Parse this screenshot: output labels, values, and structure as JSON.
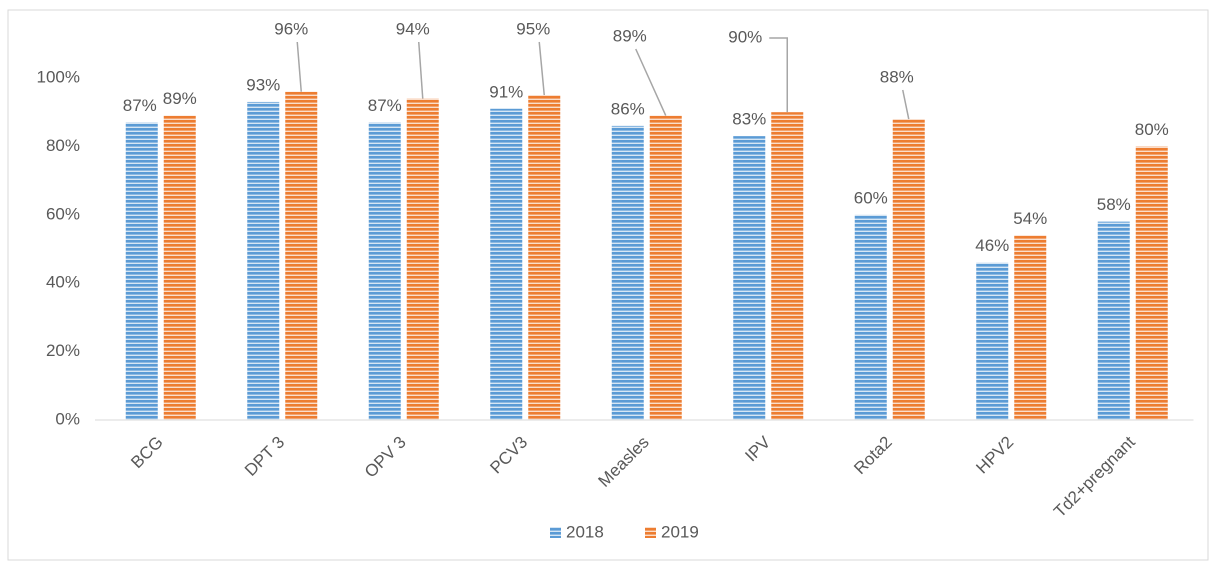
{
  "chart_data": {
    "type": "bar",
    "categories": [
      "BCG",
      "DPT 3",
      "OPV 3",
      "PCV3",
      "Measles",
      "IPV",
      "Rota2",
      "HPV2",
      "Td2+pregnant"
    ],
    "series": [
      {
        "name": "2018",
        "color": "#5b9bd5",
        "values": [
          87,
          93,
          87,
          91,
          86,
          83,
          60,
          46,
          58
        ],
        "value_labels": [
          "87%",
          "93%",
          "87%",
          "91%",
          "86%",
          "83%",
          "60%",
          "46%",
          "58%"
        ]
      },
      {
        "name": "2019",
        "color": "#ed7d31",
        "values": [
          89,
          96,
          94,
          95,
          89,
          90,
          88,
          54,
          80
        ],
        "value_labels": [
          "89%",
          "96%",
          "94%",
          "95%",
          "89%",
          "90%",
          "88%",
          "54%",
          "80%"
        ]
      }
    ],
    "ylim": [
      0,
      100
    ],
    "yticks": [
      {
        "value": 0,
        "label": "0%"
      },
      {
        "value": 20,
        "label": "20%"
      },
      {
        "value": 40,
        "label": "40%"
      },
      {
        "value": 60,
        "label": "60%"
      },
      {
        "value": 80,
        "label": "80%"
      },
      {
        "value": 100,
        "label": "100%"
      }
    ],
    "legend": "bottom"
  }
}
